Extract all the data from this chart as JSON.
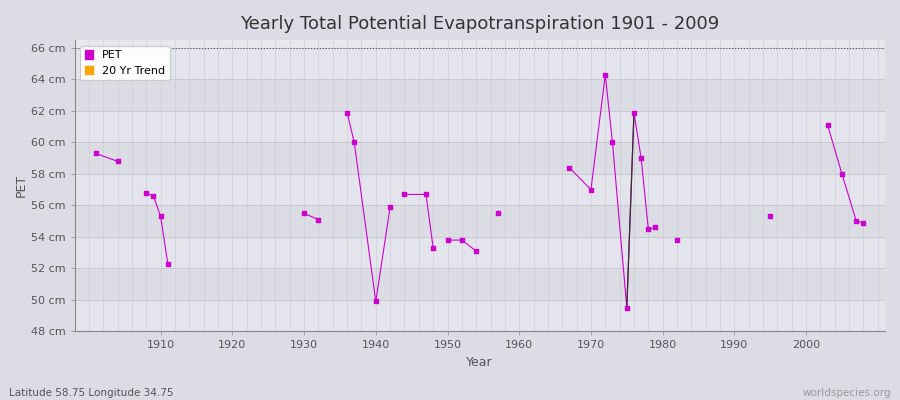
{
  "title": "Yearly Total Potential Evapotranspiration 1901 - 2009",
  "xlabel": "Year",
  "ylabel": "PET",
  "bottom_left_label": "Latitude 58.75 Longitude 34.75",
  "bottom_right_label": "worldspecies.org",
  "ylim": [
    48,
    66.5
  ],
  "xlim": [
    1898,
    2011
  ],
  "ytick_labels": [
    "48 cm",
    "50 cm",
    "52 cm",
    "54 cm",
    "56 cm",
    "58 cm",
    "60 cm",
    "62 cm",
    "64 cm",
    "66 cm"
  ],
  "ytick_values": [
    48,
    50,
    52,
    54,
    56,
    58,
    60,
    62,
    64,
    66
  ],
  "xtick_values": [
    1910,
    1920,
    1930,
    1940,
    1950,
    1960,
    1970,
    1980,
    1990,
    2000
  ],
  "dotted_line_y": 66,
  "pet_color": "#CC00CC",
  "trend_color": "#FFA500",
  "band_colors": [
    "#E8E8EE",
    "#DCDCE4"
  ],
  "plot_bg_color": "#E8E8EE",
  "grid_color": "#CCCCCC",
  "grid_vcolor": "#D8D8DF",
  "axis_color": "#888888",
  "pet_data": [
    [
      1901,
      59.3
    ],
    [
      1904,
      58.8
    ],
    [
      1908,
      56.8
    ],
    [
      1909,
      56.6
    ],
    [
      1910,
      55.3
    ],
    [
      1911,
      52.3
    ],
    [
      1930,
      55.5
    ],
    [
      1932,
      55.1
    ],
    [
      1936,
      61.9
    ],
    [
      1937,
      60.0
    ],
    [
      1940,
      49.9
    ],
    [
      1942,
      55.9
    ],
    [
      1944,
      56.7
    ],
    [
      1947,
      56.7
    ],
    [
      1948,
      53.3
    ],
    [
      1950,
      53.8
    ],
    [
      1952,
      53.8
    ],
    [
      1954,
      53.1
    ],
    [
      1957,
      55.5
    ],
    [
      1967,
      58.4
    ],
    [
      1970,
      57.0
    ],
    [
      1972,
      64.3
    ],
    [
      1973,
      60.0
    ],
    [
      1975,
      49.5
    ],
    [
      1976,
      61.9
    ],
    [
      1977,
      59.0
    ],
    [
      1978,
      54.5
    ],
    [
      1979,
      54.6
    ],
    [
      1982,
      53.8
    ],
    [
      1995,
      55.3
    ],
    [
      2003,
      61.1
    ],
    [
      2005,
      58.0
    ],
    [
      2007,
      55.0
    ],
    [
      2008,
      54.9
    ]
  ],
  "pet_lines": [
    [
      [
        1901,
        59.3
      ],
      [
        1904,
        58.8
      ]
    ],
    [
      [
        1908,
        56.8
      ],
      [
        1909,
        56.6
      ],
      [
        1910,
        55.3
      ],
      [
        1911,
        52.3
      ]
    ],
    [
      [
        1930,
        55.5
      ],
      [
        1932,
        55.1
      ]
    ],
    [
      [
        1936,
        61.9
      ],
      [
        1937,
        60.0
      ],
      [
        1940,
        49.9
      ],
      [
        1942,
        55.9
      ]
    ],
    [
      [
        1944,
        56.7
      ],
      [
        1947,
        56.7
      ],
      [
        1948,
        53.3
      ]
    ],
    [
      [
        1950,
        53.8
      ],
      [
        1952,
        53.8
      ],
      [
        1954,
        53.1
      ]
    ],
    [
      [
        1967,
        58.4
      ],
      [
        1970,
        57.0
      ],
      [
        1972,
        64.3
      ],
      [
        1973,
        60.0
      ],
      [
        1975,
        49.5
      ],
      [
        1976,
        61.9
      ],
      [
        1977,
        59.0
      ],
      [
        1978,
        54.5
      ],
      [
        1979,
        54.6
      ]
    ],
    [
      [
        2003,
        61.1
      ],
      [
        2005,
        58.0
      ],
      [
        2007,
        55.0
      ],
      [
        2008,
        54.9
      ]
    ]
  ],
  "trend_line": [
    [
      1975,
      54.0
    ],
    [
      1976,
      61.9
    ]
  ]
}
